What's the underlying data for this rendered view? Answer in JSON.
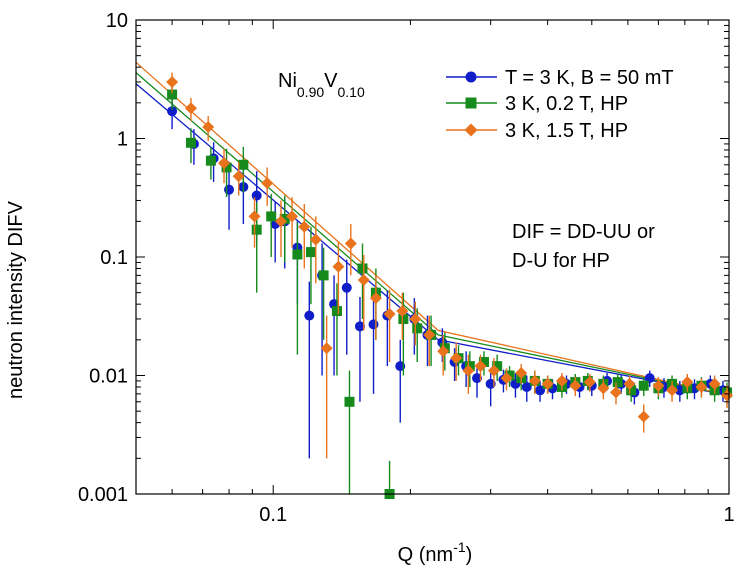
{
  "chart_data": {
    "type": "scatter",
    "xscale": "log",
    "yscale": "log",
    "xlim": [
      0.05,
      1.0
    ],
    "ylim": [
      0.001,
      10
    ],
    "xlabel": "Q (nm",
    "xlabel_sup": "-1",
    "xlabel_end": ")",
    "ylabel": "neutron intensity DIFV",
    "x_ticks": [
      {
        "v": 0.1,
        "label": "0.1"
      },
      {
        "v": 1,
        "label": "1"
      }
    ],
    "y_ticks": [
      {
        "v": 0.001,
        "label": "0.001"
      },
      {
        "v": 0.01,
        "label": "0.01"
      },
      {
        "v": 0.1,
        "label": "0.1"
      },
      {
        "v": 1,
        "label": "1"
      },
      {
        "v": 10,
        "label": "10"
      }
    ],
    "sample_label": {
      "base1": "Ni",
      "sub1": "0.90",
      "base2": "V",
      "sub2": "0.10"
    },
    "annotation_lines": [
      "DIF = DD-UU or",
      "D-U for HP"
    ],
    "legend_position": "top-right",
    "series": [
      {
        "name": "T = 3 K, B = 50 mT",
        "color": "#0f1ec8",
        "marker": "circle",
        "fit": {
          "x": [
            0.05,
            0.23,
            1.0
          ],
          "y": [
            2.9,
            0.02,
            0.0068
          ]
        },
        "points": [
          [
            0.06,
            1.7,
            0.5
          ],
          [
            0.067,
            0.9,
            0.3
          ],
          [
            0.074,
            0.68,
            0.25
          ],
          [
            0.08,
            0.37,
            0.2
          ],
          [
            0.086,
            0.39,
            0.2
          ],
          [
            0.092,
            0.33,
            0.2
          ],
          [
            0.101,
            0.19,
            0.1
          ],
          [
            0.106,
            0.2,
            0.12
          ],
          [
            0.113,
            0.12,
            0.08
          ],
          [
            0.12,
            0.032,
            0.03
          ],
          [
            0.128,
            0.07,
            0.06
          ],
          [
            0.136,
            0.04,
            0.03
          ],
          [
            0.145,
            0.055,
            0.04
          ],
          [
            0.155,
            0.026,
            0.02
          ],
          [
            0.166,
            0.027,
            0.02
          ],
          [
            0.178,
            0.032,
            0.02
          ],
          [
            0.19,
            0.012,
            0.008
          ],
          [
            0.204,
            0.03,
            0.015
          ],
          [
            0.218,
            0.022,
            0.01
          ],
          [
            0.235,
            0.019,
            0.006
          ],
          [
            0.25,
            0.013,
            0.004
          ],
          [
            0.265,
            0.012,
            0.004
          ],
          [
            0.28,
            0.0095,
            0.003
          ],
          [
            0.3,
            0.0085,
            0.003
          ],
          [
            0.32,
            0.0092,
            0.002
          ],
          [
            0.34,
            0.0085,
            0.002
          ],
          [
            0.36,
            0.008,
            0.002
          ],
          [
            0.385,
            0.0075,
            0.0015
          ],
          [
            0.41,
            0.0078,
            0.0015
          ],
          [
            0.44,
            0.0085,
            0.0015
          ],
          [
            0.47,
            0.008,
            0.0015
          ],
          [
            0.5,
            0.0082,
            0.0015
          ],
          [
            0.54,
            0.009,
            0.0015
          ],
          [
            0.58,
            0.0085,
            0.0015
          ],
          [
            0.62,
            0.0072,
            0.0015
          ],
          [
            0.67,
            0.0095,
            0.0015
          ],
          [
            0.72,
            0.008,
            0.0015
          ],
          [
            0.78,
            0.0075,
            0.0015
          ],
          [
            0.84,
            0.0078,
            0.0015
          ],
          [
            0.91,
            0.0085,
            0.0015
          ],
          [
            0.97,
            0.0075,
            0.0015
          ]
        ]
      },
      {
        "name": "3 K, 0.2 T, HP",
        "color": "#168a1d",
        "marker": "square",
        "fit": {
          "x": [
            0.05,
            0.23,
            1.0
          ],
          "y": [
            3.6,
            0.022,
            0.0068
          ]
        },
        "points": [
          [
            0.06,
            2.35,
            0.6
          ],
          [
            0.066,
            0.92,
            0.3
          ],
          [
            0.073,
            0.65,
            0.2
          ],
          [
            0.079,
            0.57,
            0.25
          ],
          [
            0.086,
            0.6,
            0.25
          ],
          [
            0.092,
            0.17,
            0.12
          ],
          [
            0.099,
            0.22,
            0.12
          ],
          [
            0.106,
            0.21,
            0.12
          ],
          [
            0.113,
            0.105,
            0.09
          ],
          [
            0.121,
            0.11,
            0.07
          ],
          [
            0.129,
            0.07,
            0.05
          ],
          [
            0.138,
            0.035,
            0.025
          ],
          [
            0.147,
            0.006,
            0.005
          ],
          [
            0.157,
            0.08,
            0.05
          ],
          [
            0.168,
            0.05,
            0.03
          ],
          [
            0.18,
            0.001,
            0.0009
          ],
          [
            0.193,
            0.03,
            0.02
          ],
          [
            0.207,
            0.025,
            0.012
          ],
          [
            0.222,
            0.022,
            0.01
          ],
          [
            0.238,
            0.017,
            0.006
          ],
          [
            0.255,
            0.014,
            0.004
          ],
          [
            0.27,
            0.012,
            0.004
          ],
          [
            0.29,
            0.013,
            0.003
          ],
          [
            0.31,
            0.012,
            0.003
          ],
          [
            0.33,
            0.01,
            0.002
          ],
          [
            0.35,
            0.0095,
            0.002
          ],
          [
            0.375,
            0.009,
            0.002
          ],
          [
            0.4,
            0.0085,
            0.0015
          ],
          [
            0.43,
            0.008,
            0.0015
          ],
          [
            0.46,
            0.0088,
            0.0015
          ],
          [
            0.49,
            0.009,
            0.0015
          ],
          [
            0.53,
            0.0085,
            0.0015
          ],
          [
            0.57,
            0.0088,
            0.0015
          ],
          [
            0.61,
            0.0075,
            0.0015
          ],
          [
            0.65,
            0.0082,
            0.0015
          ],
          [
            0.7,
            0.0078,
            0.0015
          ],
          [
            0.75,
            0.0085,
            0.0015
          ],
          [
            0.81,
            0.0078,
            0.0015
          ],
          [
            0.87,
            0.0082,
            0.0015
          ],
          [
            0.93,
            0.0075,
            0.0015
          ],
          [
            0.99,
            0.0072,
            0.0015
          ]
        ]
      },
      {
        "name": "3 K, 1.5 T, HP",
        "color": "#e8731c",
        "marker": "diamond",
        "fit": {
          "x": [
            0.05,
            0.23,
            1.0
          ],
          "y": [
            4.4,
            0.024,
            0.0068
          ]
        },
        "points": [
          [
            0.06,
            3.0,
            0.6
          ],
          [
            0.066,
            1.8,
            0.4
          ],
          [
            0.072,
            1.25,
            0.3
          ],
          [
            0.078,
            0.62,
            0.2
          ],
          [
            0.084,
            0.48,
            0.15
          ],
          [
            0.091,
            0.22,
            0.1
          ],
          [
            0.097,
            0.42,
            0.15
          ],
          [
            0.104,
            0.2,
            0.1
          ],
          [
            0.11,
            0.22,
            0.1
          ],
          [
            0.117,
            0.18,
            0.1
          ],
          [
            0.124,
            0.14,
            0.08
          ],
          [
            0.131,
            0.017,
            0.015
          ],
          [
            0.139,
            0.083,
            0.05
          ],
          [
            0.148,
            0.13,
            0.06
          ],
          [
            0.158,
            0.064,
            0.04
          ],
          [
            0.168,
            0.045,
            0.025
          ],
          [
            0.18,
            0.033,
            0.02
          ],
          [
            0.192,
            0.035,
            0.015
          ],
          [
            0.205,
            0.03,
            0.012
          ],
          [
            0.22,
            0.022,
            0.01
          ],
          [
            0.236,
            0.016,
            0.006
          ],
          [
            0.252,
            0.014,
            0.005
          ],
          [
            0.268,
            0.011,
            0.004
          ],
          [
            0.285,
            0.012,
            0.003
          ],
          [
            0.305,
            0.011,
            0.003
          ],
          [
            0.325,
            0.0095,
            0.002
          ],
          [
            0.35,
            0.0105,
            0.002
          ],
          [
            0.375,
            0.009,
            0.002
          ],
          [
            0.4,
            0.0085,
            0.0015
          ],
          [
            0.43,
            0.009,
            0.0015
          ],
          [
            0.46,
            0.0082,
            0.0015
          ],
          [
            0.495,
            0.0088,
            0.0015
          ],
          [
            0.53,
            0.0078,
            0.0015
          ],
          [
            0.565,
            0.0072,
            0.0015
          ],
          [
            0.605,
            0.0085,
            0.0015
          ],
          [
            0.65,
            0.0045,
            0.0012
          ],
          [
            0.7,
            0.0082,
            0.0015
          ],
          [
            0.75,
            0.0075,
            0.0015
          ],
          [
            0.81,
            0.0088,
            0.0015
          ],
          [
            0.87,
            0.008,
            0.0015
          ],
          [
            0.93,
            0.0085,
            0.0015
          ],
          [
            0.99,
            0.0068,
            0.0015
          ]
        ]
      }
    ]
  }
}
